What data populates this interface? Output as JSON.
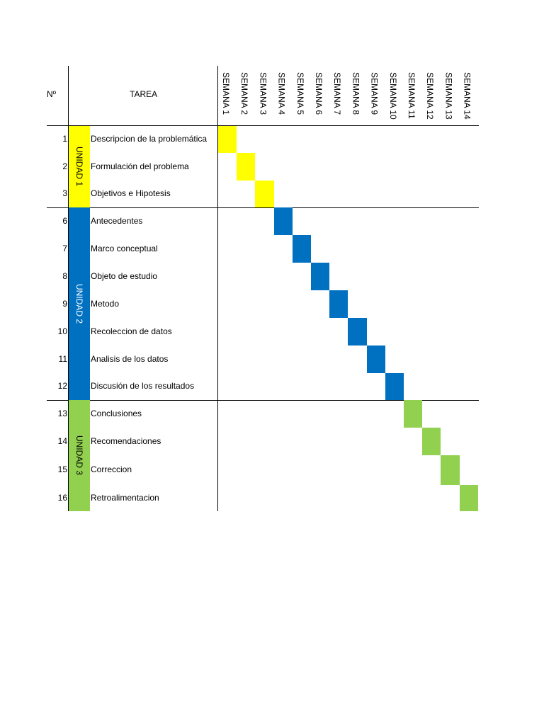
{
  "header": {
    "no_label": "Nº",
    "task_label": "TAREA"
  },
  "weeks": [
    "SEMANA 1",
    "SEMANA 2",
    "SEMANA 3",
    "SEMANA 4",
    "SEMANA 5",
    "SEMANA 6",
    "SEMANA 7",
    "SEMANA 8",
    "SEMANA 9",
    "SEMANA 10",
    "SEMANA 11",
    "SEMANA 12",
    "SEMANA 13",
    "SEMANA 14"
  ],
  "units": [
    {
      "label": "UNIDAD 1",
      "color": "#FFFF00",
      "text_color": "#000000",
      "first_row": 0,
      "last_row": 2
    },
    {
      "label": "UNIDAD 2",
      "color": "#0070C0",
      "text_color": "#FFFFFF",
      "first_row": 3,
      "last_row": 9
    },
    {
      "label": "UNIDAD 3",
      "color": "#92D050",
      "text_color": "#000000",
      "first_row": 10,
      "last_row": 13
    }
  ],
  "tasks": [
    {
      "no": "1",
      "name": "Descripcion de la problemática",
      "week": 1,
      "unit": 0
    },
    {
      "no": "2",
      "name": "Formulación del problema",
      "week": 2,
      "unit": 0
    },
    {
      "no": "3",
      "name": "Objetivos e Hipotesis",
      "week": 3,
      "unit": 0
    },
    {
      "no": "6",
      "name": "Antecedentes",
      "week": 4,
      "unit": 1
    },
    {
      "no": "7",
      "name": "Marco conceptual",
      "week": 5,
      "unit": 1
    },
    {
      "no": "8",
      "name": "Objeto de estudio",
      "week": 6,
      "unit": 1
    },
    {
      "no": "9",
      "name": "Metodo",
      "week": 7,
      "unit": 1
    },
    {
      "no": "10",
      "name": "Recoleccion de datos",
      "week": 8,
      "unit": 1
    },
    {
      "no": "11",
      "name": "Analisis de los datos",
      "week": 9,
      "unit": 1
    },
    {
      "no": "12",
      "name": "Discusión de los resultados",
      "week": 10,
      "unit": 1
    },
    {
      "no": "13",
      "name": "Conclusiones",
      "week": 11,
      "unit": 2
    },
    {
      "no": "14",
      "name": "Recomendaciones",
      "week": 12,
      "unit": 2
    },
    {
      "no": "15",
      "name": "Correccion",
      "week": 13,
      "unit": 2
    },
    {
      "no": "16",
      "name": "Retroalimentacion",
      "week": 14,
      "unit": 2
    }
  ]
}
